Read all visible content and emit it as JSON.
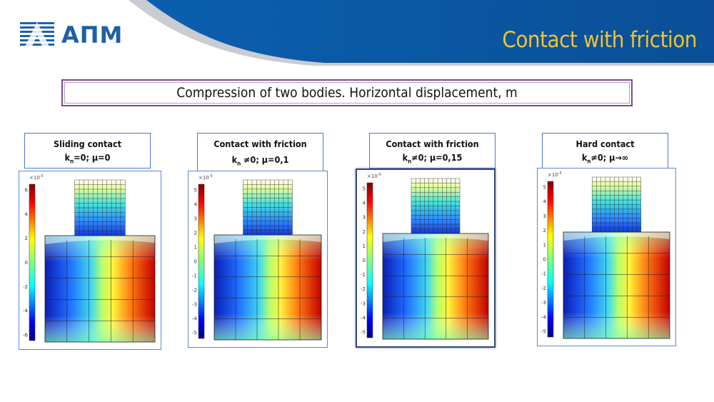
{
  "header": {
    "logo_text": "АПМ",
    "title": "Contact with friction"
  },
  "subtitle": "Compression of two bodies. Horizontal displacement, m",
  "colors": {
    "header_blue": "#0d5aa7",
    "title_yellow": "#f2c230",
    "subtitle_border": "#7a4a8c",
    "panel_border": "#5a8ad4"
  },
  "panels": [
    {
      "label_line1": "Sliding contact",
      "label_line2": "k",
      "label_sub": "n",
      "label_line2_rest": "=0; μ=0",
      "exponent": "×10",
      "exponent_power": "-5",
      "ticks": [
        "6",
        "4",
        "2",
        "0",
        "-2",
        "-4",
        "-6"
      ]
    },
    {
      "label_line1": "Contact with friction",
      "label_line2": "k",
      "label_sub": "n",
      "label_line2_rest": " ≠0; μ=0,1",
      "exponent": "×10",
      "exponent_power": "-5",
      "ticks": [
        "5",
        "4",
        "3",
        "2",
        "1",
        "0",
        "-1",
        "-2",
        "-3",
        "-4",
        "-5"
      ]
    },
    {
      "label_line1": "Contact with friction",
      "label_line2": "k",
      "label_sub": "n",
      "label_line2_rest": "≠0; μ=0,15",
      "exponent": "×10",
      "exponent_power": "-5",
      "ticks": [
        "5",
        "4",
        "3",
        "2",
        "1",
        "0",
        "-1",
        "-2",
        "-3",
        "-4",
        "-5"
      ]
    },
    {
      "label_line1": "Hard contact",
      "label_line2": "k",
      "label_sub": "n",
      "label_line2_rest": "≠0; μ→∞",
      "exponent": "×10",
      "exponent_power": "-5",
      "ticks": [
        "5",
        "4",
        "3",
        "2",
        "1",
        "0",
        "-1",
        "-2",
        "-3",
        "-4",
        "-5"
      ]
    }
  ]
}
